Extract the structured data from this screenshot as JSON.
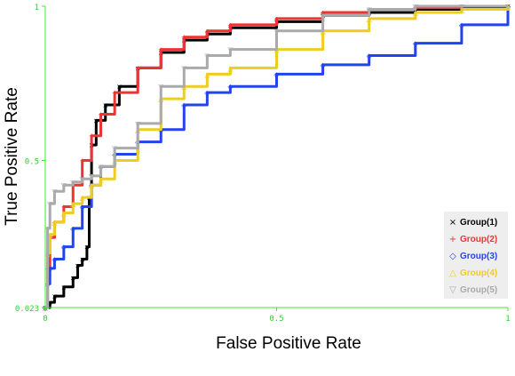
{
  "chart_data": {
    "type": "line",
    "xlabel": "False Positive Rate",
    "ylabel": "True Positive Rate",
    "xlim": [
      0,
      1
    ],
    "ylim": [
      0.023,
      1
    ],
    "x_ticks": [
      {
        "value": 0,
        "label": "0"
      },
      {
        "value": 0.5,
        "label": "0.5"
      },
      {
        "value": 1,
        "label": "1"
      }
    ],
    "y_ticks": [
      {
        "value": 0.023,
        "label": "0.023"
      },
      {
        "value": 0.5,
        "label": "0.5"
      },
      {
        "value": 1,
        "label": "1"
      }
    ],
    "grid": false,
    "legend_position": "bottom-right",
    "axis_color": "#33ee33",
    "tick_color": "#33cc33",
    "series": [
      {
        "name": "Group(1)",
        "color": "#000000",
        "marker": "×",
        "x": [
          0.0,
          0.01,
          0.02,
          0.04,
          0.06,
          0.07,
          0.08,
          0.09,
          0.095,
          0.1,
          0.11,
          0.13,
          0.16,
          0.2,
          0.25,
          0.3,
          0.35,
          0.4,
          0.5,
          0.6,
          0.7,
          0.8,
          0.9,
          1.0
        ],
        "y": [
          0.023,
          0.04,
          0.06,
          0.09,
          0.12,
          0.16,
          0.18,
          0.22,
          0.38,
          0.55,
          0.63,
          0.68,
          0.74,
          0.8,
          0.85,
          0.89,
          0.91,
          0.93,
          0.95,
          0.97,
          0.98,
          0.99,
          0.995,
          1.0
        ]
      },
      {
        "name": "Group(2)",
        "color": "#ee3333",
        "marker": "+",
        "x": [
          0.0,
          0.005,
          0.01,
          0.02,
          0.04,
          0.06,
          0.08,
          0.1,
          0.12,
          0.15,
          0.2,
          0.25,
          0.3,
          0.35,
          0.4,
          0.5,
          0.6,
          0.7,
          0.8,
          0.9,
          1.0
        ],
        "y": [
          0.023,
          0.15,
          0.25,
          0.3,
          0.35,
          0.42,
          0.5,
          0.58,
          0.65,
          0.72,
          0.8,
          0.86,
          0.9,
          0.92,
          0.94,
          0.96,
          0.98,
          0.99,
          0.995,
          1.0,
          1.0
        ]
      },
      {
        "name": "Group(3)",
        "color": "#2244ee",
        "marker": "◇",
        "x": [
          0.0,
          0.005,
          0.01,
          0.02,
          0.04,
          0.06,
          0.08,
          0.1,
          0.12,
          0.15,
          0.2,
          0.25,
          0.3,
          0.35,
          0.4,
          0.5,
          0.6,
          0.7,
          0.8,
          0.9,
          1.0
        ],
        "y": [
          0.023,
          0.1,
          0.15,
          0.18,
          0.22,
          0.28,
          0.35,
          0.42,
          0.48,
          0.52,
          0.56,
          0.6,
          0.68,
          0.72,
          0.74,
          0.78,
          0.81,
          0.84,
          0.88,
          0.94,
          1.0
        ]
      },
      {
        "name": "Group(4)",
        "color": "#eecc22",
        "marker": "△",
        "x": [
          0.0,
          0.005,
          0.01,
          0.02,
          0.04,
          0.06,
          0.08,
          0.1,
          0.12,
          0.15,
          0.2,
          0.25,
          0.3,
          0.35,
          0.4,
          0.5,
          0.6,
          0.7,
          0.8,
          0.9,
          1.0
        ],
        "y": [
          0.023,
          0.2,
          0.26,
          0.3,
          0.33,
          0.36,
          0.38,
          0.42,
          0.44,
          0.5,
          0.6,
          0.7,
          0.74,
          0.78,
          0.8,
          0.86,
          0.92,
          0.96,
          0.98,
          0.99,
          1.0
        ]
      },
      {
        "name": "Group(5)",
        "color": "#aaaaaa",
        "marker": "▽",
        "x": [
          0.0,
          0.005,
          0.01,
          0.02,
          0.04,
          0.06,
          0.08,
          0.1,
          0.12,
          0.15,
          0.2,
          0.25,
          0.3,
          0.35,
          0.4,
          0.5,
          0.6,
          0.7,
          0.8,
          0.9,
          1.0
        ],
        "y": [
          0.023,
          0.28,
          0.36,
          0.4,
          0.42,
          0.43,
          0.44,
          0.45,
          0.48,
          0.54,
          0.62,
          0.74,
          0.8,
          0.84,
          0.86,
          0.92,
          0.97,
          0.99,
          1.0,
          1.0,
          1.0
        ]
      }
    ]
  }
}
